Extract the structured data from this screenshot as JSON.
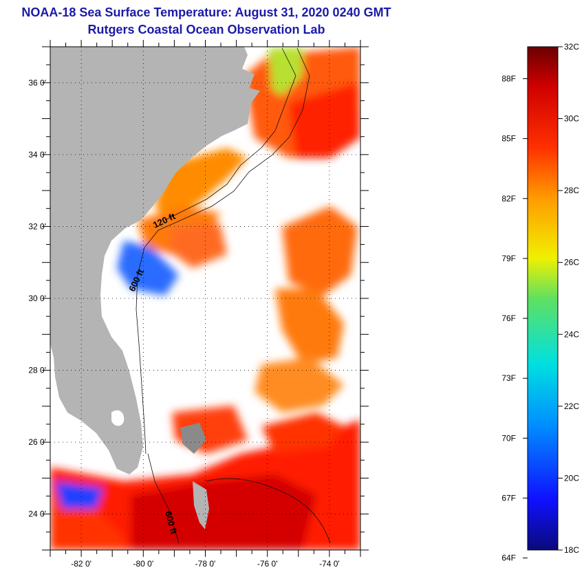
{
  "title": {
    "line1": "NOAA-18 Sea Surface Temperature:  August 31, 2020 0240 GMT",
    "line2": "Rutgers Coastal Ocean Observation Lab"
  },
  "map": {
    "lon_range": [
      -83,
      -73
    ],
    "lat_range": [
      23,
      37
    ],
    "lon_ticks": [
      {
        "value": -82,
        "label": "-82 0'"
      },
      {
        "value": -80,
        "label": "-80 0'"
      },
      {
        "value": -78,
        "label": "-78 0'"
      },
      {
        "value": -76,
        "label": "-76 0'"
      },
      {
        "value": -74,
        "label": "-74 0'"
      }
    ],
    "lat_ticks": [
      {
        "value": 36,
        "label": "36 0'"
      },
      {
        "value": 34,
        "label": "34 0'"
      },
      {
        "value": 32,
        "label": "32 0'"
      },
      {
        "value": 30,
        "label": "30 0'"
      },
      {
        "value": 28,
        "label": "28 0'"
      },
      {
        "value": 26,
        "label": "26 0'"
      },
      {
        "value": 24,
        "label": "24 0'"
      }
    ],
    "contour_labels": [
      "120 ft",
      "600 ft",
      "600 ft"
    ],
    "colors": {
      "land": "#b4b4b4",
      "cloud": "#ffffff",
      "grid": "#000000"
    }
  },
  "color_scale": {
    "fahrenheit": [
      "88F",
      "85F",
      "82F",
      "79F",
      "76F",
      "73F",
      "70F",
      "67F",
      "64F"
    ],
    "celsius": [
      "32C",
      "30C",
      "28C",
      "26C",
      "24C",
      "22C",
      "20C",
      "18C"
    ],
    "range_c": [
      18,
      32
    ]
  }
}
